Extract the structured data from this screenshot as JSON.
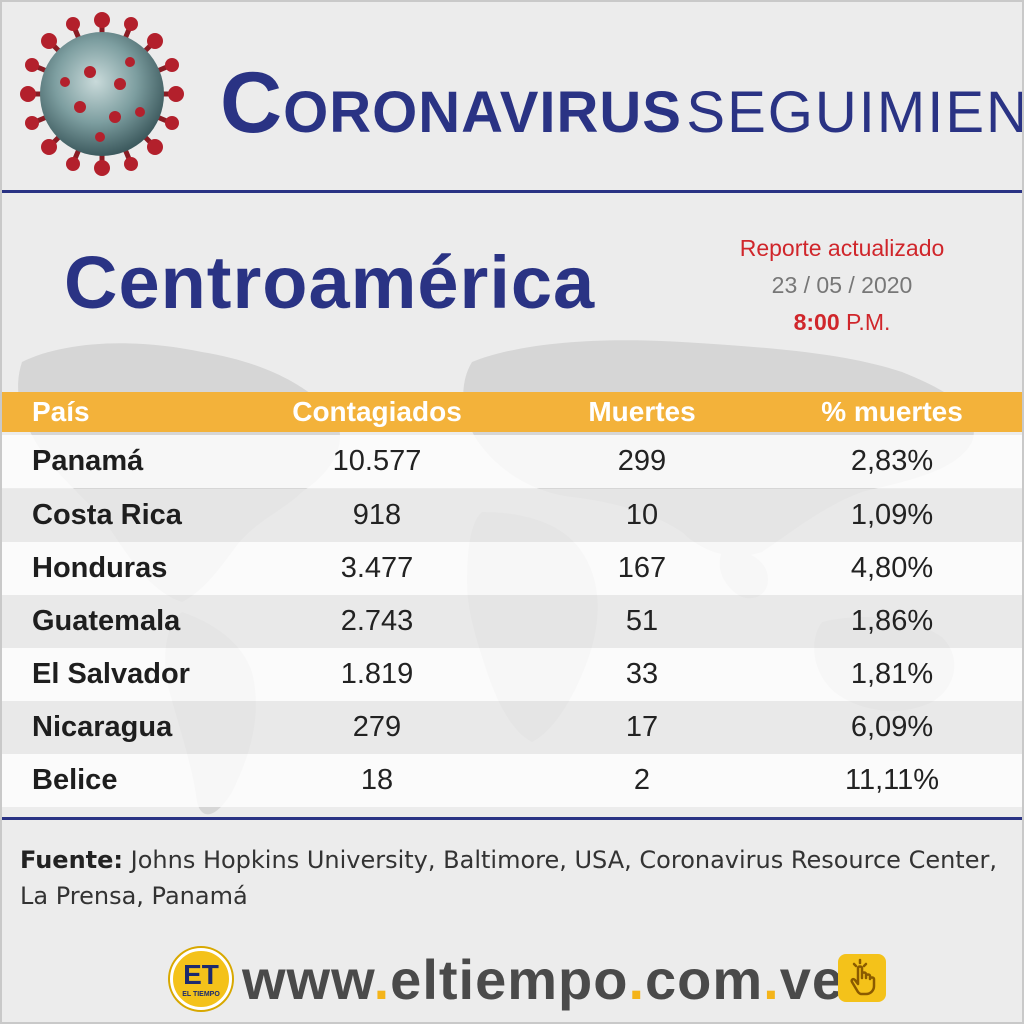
{
  "header": {
    "title_first": "C",
    "title_rest": "ORONAVIRUS",
    "title_second": "SEGUIMIENTO"
  },
  "region": "Centroamérica",
  "report": {
    "label": "Reporte actualizado",
    "date": "23 / 05 / 2020",
    "time": "8:00",
    "meridiem": "P.M."
  },
  "table": {
    "headers": [
      "País",
      "Contagiados",
      "Muertes",
      "% muertes"
    ],
    "rows": [
      {
        "country": "Panamá",
        "contagiados": "10.577",
        "muertes": "299",
        "pct": "2,83%"
      },
      {
        "country": "Costa Rica",
        "contagiados": "918",
        "muertes": "10",
        "pct": "1,09%"
      },
      {
        "country": "Honduras",
        "contagiados": "3.477",
        "muertes": "167",
        "pct": "4,80%"
      },
      {
        "country": "Guatemala",
        "contagiados": "2.743",
        "muertes": "51",
        "pct": "1,86%"
      },
      {
        "country": "El Salvador",
        "contagiados": "1.819",
        "muertes": "33",
        "pct": "1,81%"
      },
      {
        "country": "Nicaragua",
        "contagiados": "279",
        "muertes": "17",
        "pct": "6,09%"
      },
      {
        "country": "Belice",
        "contagiados": "18",
        "muertes": "2",
        "pct": "11,11%"
      }
    ]
  },
  "source": {
    "label": "Fuente:",
    "text": " Johns Hopkins University, Baltimore, USA, Coronavirus Resource Center, La Prensa, Panamá"
  },
  "footer": {
    "logo_text": "ET",
    "logo_small": "EL TIEMPO",
    "url_parts": [
      "www",
      ".",
      "eltiempo",
      ".",
      "com",
      ".",
      "ve"
    ]
  },
  "colors": {
    "navy": "#2a3384",
    "header_bar": "#f3b23a",
    "accent_red": "#d0262b",
    "logo_yellow": "#f4c21a"
  },
  "icons": [
    "coronavirus-illustration",
    "world-map-background",
    "hand-click-icon"
  ]
}
